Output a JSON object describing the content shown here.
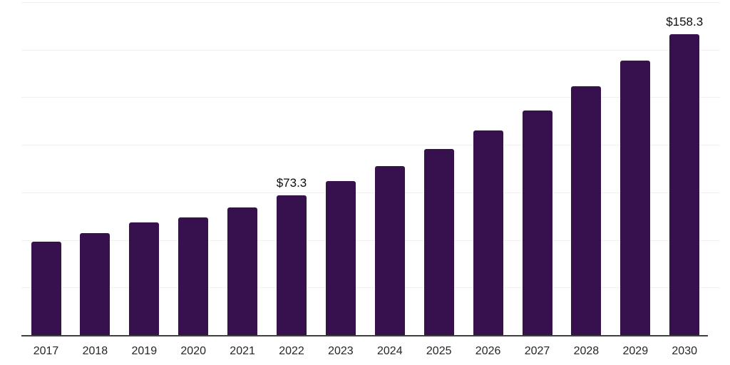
{
  "chart_data": {
    "type": "bar",
    "title": "",
    "xlabel": "",
    "ylabel": "",
    "categories": [
      "2017",
      "2018",
      "2019",
      "2020",
      "2021",
      "2022",
      "2023",
      "2024",
      "2025",
      "2026",
      "2027",
      "2028",
      "2029",
      "2030"
    ],
    "values": [
      49.0,
      53.6,
      59.1,
      61.8,
      67.1,
      73.3,
      80.8,
      88.7,
      97.7,
      107.4,
      118.2,
      130.8,
      144.3,
      158.3
    ],
    "ylim": [
      0,
      175
    ],
    "grid": true,
    "gridline_step": 25,
    "legend": "none",
    "data_labels": [
      {
        "category": "2022",
        "label": "$73.3"
      },
      {
        "category": "2030",
        "label": "$158.3"
      }
    ]
  },
  "colors": {
    "bar": "#36114E",
    "gridline": "#f1f1f3",
    "axis_line": "#404040",
    "tick_text": "#262626",
    "data_label_text": "#0d0d0d",
    "background": "#ffffff"
  }
}
